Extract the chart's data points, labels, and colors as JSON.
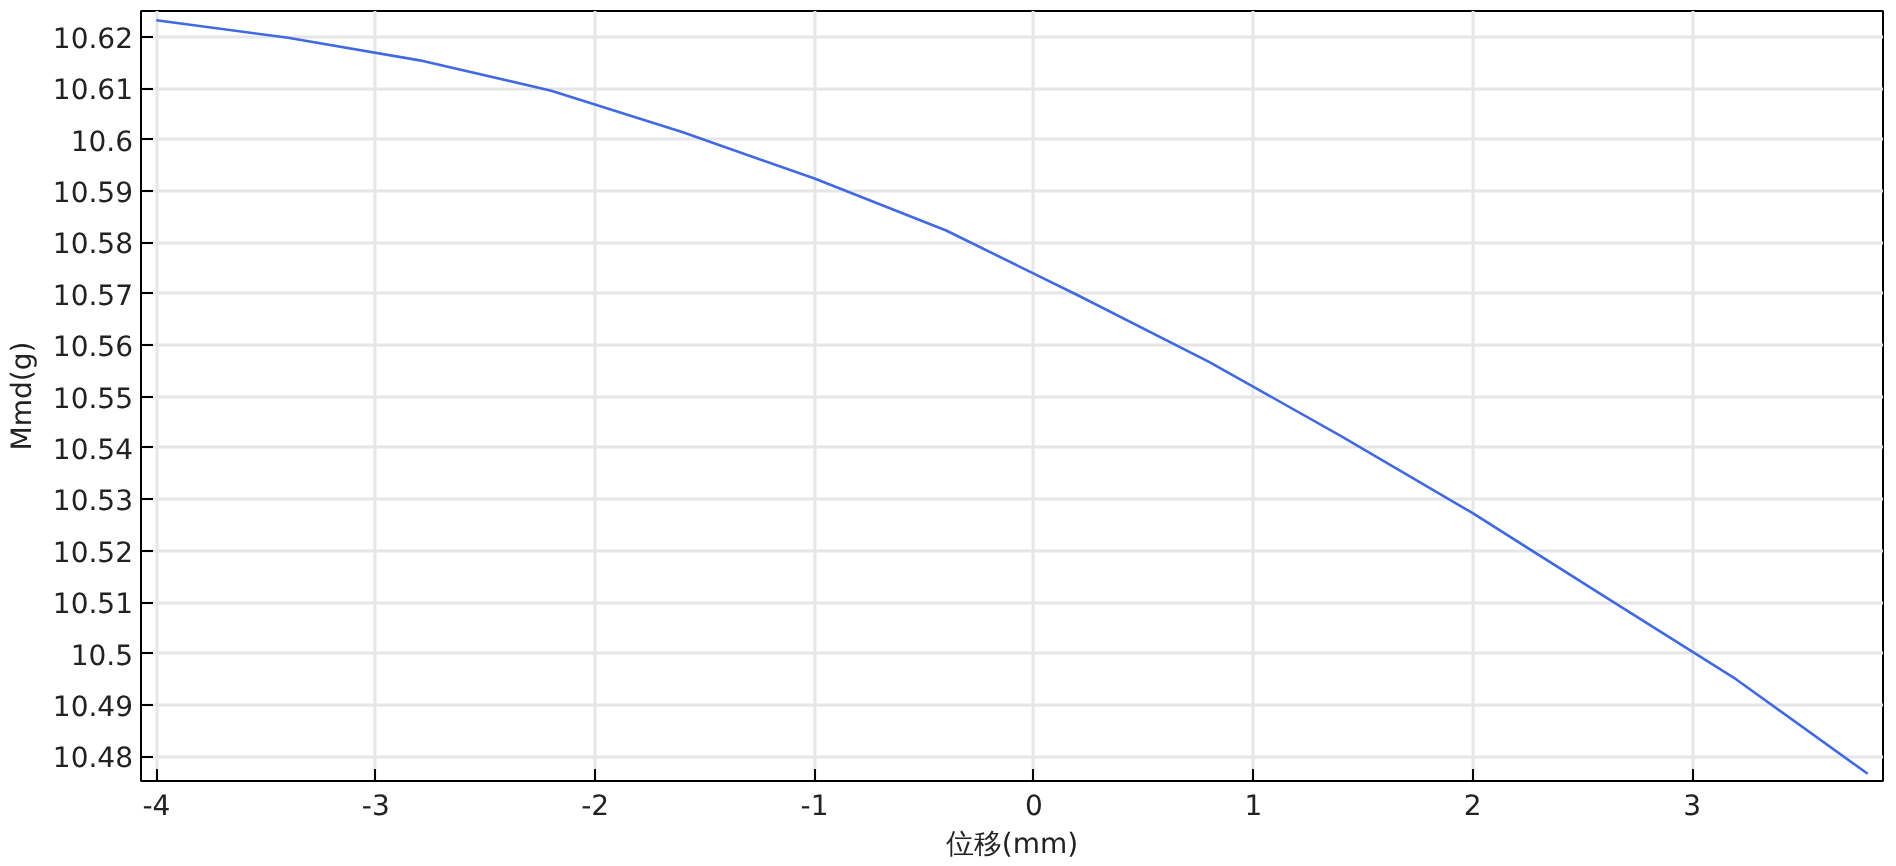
{
  "chart_data": {
    "type": "line",
    "xlabel": "位移(mm)",
    "ylabel": "Mmd(g)",
    "x": [
      -4,
      -3.4,
      -2.8,
      -2.2,
      -1.6,
      -1.0,
      -0.4,
      0.2,
      0.8,
      1.4,
      2.0,
      2.6,
      3.2,
      3.8
    ],
    "series": [
      {
        "color": "#4169e1",
        "values": [
          10.6232,
          10.6198,
          10.6154,
          10.6095,
          10.6014,
          10.5924,
          10.5823,
          10.5697,
          10.5567,
          10.5423,
          10.5273,
          10.5111,
          10.495,
          10.4766
        ]
      }
    ],
    "xlim": [
      -4.07,
      3.87
    ],
    "ylim": [
      10.4752,
      10.625
    ],
    "xticks": [
      -4,
      -3,
      -2,
      -1,
      0,
      1,
      2,
      3
    ],
    "yticks": [
      10.48,
      10.49,
      10.5,
      10.51,
      10.52,
      10.53,
      10.54,
      10.55,
      10.56,
      10.57,
      10.58,
      10.59,
      10.6,
      10.61,
      10.62
    ],
    "grid": true,
    "line_style": "solid"
  }
}
